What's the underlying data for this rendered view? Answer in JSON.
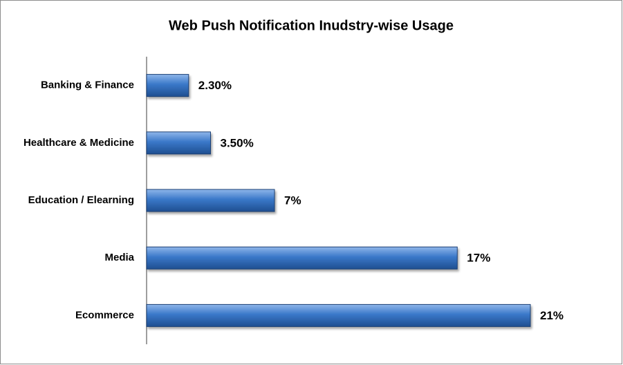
{
  "chart_data": {
    "type": "hbar",
    "title": "Web Push Notification  Inudstry-wise Usage",
    "categories": [
      "Banking & Finance",
      "Healthcare & Medicine",
      "Education / Elearning",
      "Media",
      "Ecommerce"
    ],
    "values": [
      2.3,
      3.5,
      7,
      17,
      21
    ],
    "value_labels": [
      "2.30%",
      "3.50%",
      "7%",
      "17%",
      "21%"
    ],
    "color": "#3a78c9"
  }
}
